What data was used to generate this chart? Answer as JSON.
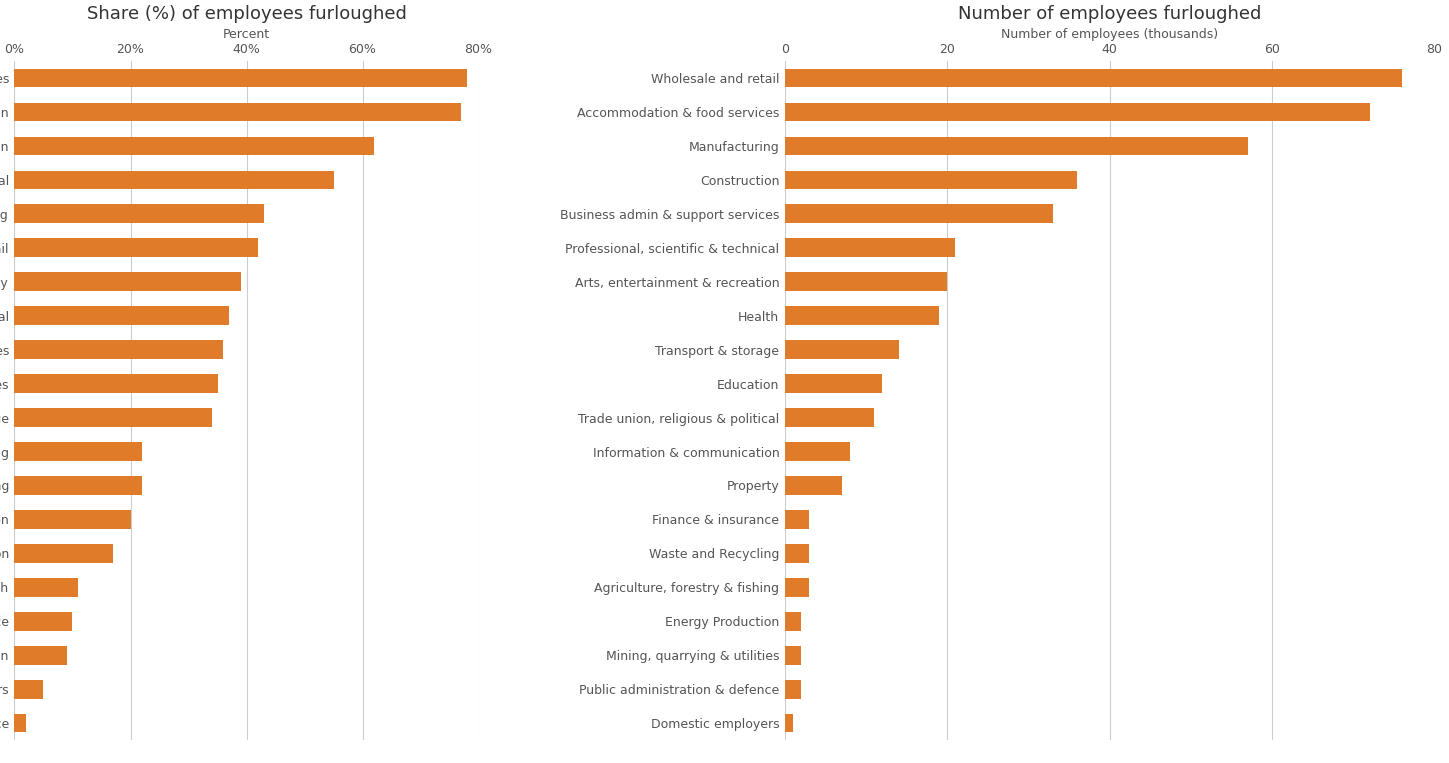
{
  "left_title": "Share (%) of employees furloughed",
  "right_title": "Number of employees furloughed",
  "left_xlabel": "Percent",
  "right_xlabel": "Number of employees (thousands)",
  "bar_color": "#E07B2A",
  "background_color": "#FFFFFF",
  "left_categories": [
    "Accommodation & food services",
    "Arts, entertainment & recreation",
    "Construction",
    "Trade union, religious & political",
    "Manufacturing",
    "Wholesale and retail",
    "Property",
    "Professional, scientific & technical",
    "Business admin & support services",
    "Mining, quarrying & utilities",
    "Transport & storage",
    "Agriculture, forestry & fishing",
    "Waste and Recycling",
    "Information & communication",
    "Energy Production",
    "Health",
    "Finance & insurance",
    "Education",
    "Domestic employers",
    "Public administration & defence"
  ],
  "left_values": [
    78,
    77,
    62,
    55,
    43,
    42,
    39,
    37,
    36,
    35,
    34,
    22,
    22,
    20,
    17,
    11,
    10,
    9,
    5,
    2
  ],
  "right_categories": [
    "Wholesale and retail",
    "Accommodation & food services",
    "Manufacturing",
    "Construction",
    "Business admin & support services",
    "Professional, scientific & technical",
    "Arts, entertainment & recreation",
    "Health",
    "Transport & storage",
    "Education",
    "Trade union, religious & political",
    "Information & communication",
    "Property",
    "Finance & insurance",
    "Waste and Recycling",
    "Agriculture, forestry & fishing",
    "Energy Production",
    "Mining, quarrying & utilities",
    "Public administration & defence",
    "Domestic employers"
  ],
  "right_values": [
    76,
    72,
    57,
    36,
    33,
    21,
    20,
    19,
    14,
    12,
    11,
    8,
    7,
    3,
    3,
    3,
    2,
    2,
    2,
    1
  ],
  "left_xlim": [
    0,
    80
  ],
  "right_xlim": [
    0,
    80
  ],
  "left_xticks": [
    0,
    20,
    40,
    60,
    80
  ],
  "left_xticklabels": [
    "0%",
    "20%",
    "40%",
    "60%",
    "80%"
  ],
  "right_xticks": [
    0,
    20,
    40,
    60,
    80
  ],
  "right_xticklabels": [
    "0",
    "20",
    "40",
    "60",
    "80"
  ]
}
